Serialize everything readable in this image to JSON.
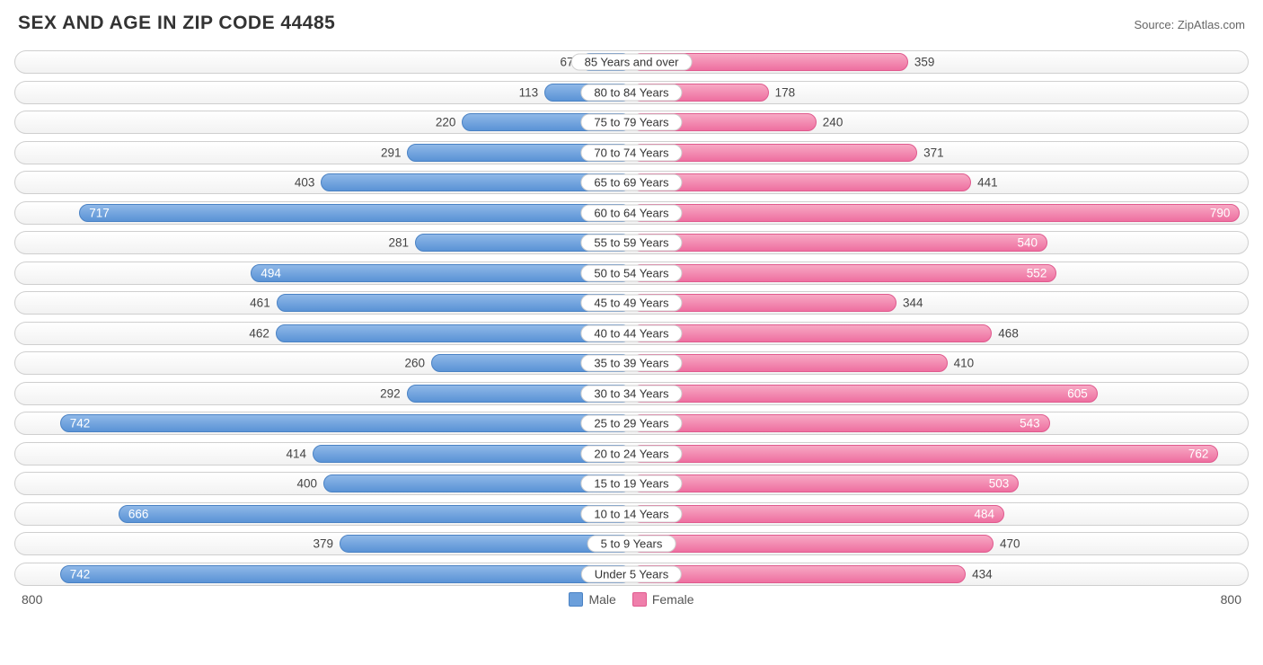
{
  "title": "SEX AND AGE IN ZIP CODE 44485",
  "source": "Source: ZipAtlas.com",
  "axis_max": 800,
  "axis_left_label": "800",
  "axis_right_label": "800",
  "legend": {
    "male": "Male",
    "female": "Female"
  },
  "colors": {
    "male_top": "#8fb8e8",
    "male_bottom": "#5a93d6",
    "male_border": "#4a82c4",
    "female_top": "#f7a9c4",
    "female_bottom": "#ee6fa0",
    "female_border": "#e05a8e",
    "row_border": "#cfcfcf",
    "text": "#444444",
    "title": "#333333",
    "bg": "#ffffff"
  },
  "inside_threshold": 480,
  "rows": [
    {
      "category": "85 Years and over",
      "male": 67,
      "female": 359
    },
    {
      "category": "80 to 84 Years",
      "male": 113,
      "female": 178
    },
    {
      "category": "75 to 79 Years",
      "male": 220,
      "female": 240
    },
    {
      "category": "70 to 74 Years",
      "male": 291,
      "female": 371
    },
    {
      "category": "65 to 69 Years",
      "male": 403,
      "female": 441
    },
    {
      "category": "60 to 64 Years",
      "male": 717,
      "female": 790
    },
    {
      "category": "55 to 59 Years",
      "male": 281,
      "female": 540
    },
    {
      "category": "50 to 54 Years",
      "male": 494,
      "female": 552
    },
    {
      "category": "45 to 49 Years",
      "male": 461,
      "female": 344
    },
    {
      "category": "40 to 44 Years",
      "male": 462,
      "female": 468
    },
    {
      "category": "35 to 39 Years",
      "male": 260,
      "female": 410
    },
    {
      "category": "30 to 34 Years",
      "male": 292,
      "female": 605
    },
    {
      "category": "25 to 29 Years",
      "male": 742,
      "female": 543
    },
    {
      "category": "20 to 24 Years",
      "male": 414,
      "female": 762
    },
    {
      "category": "15 to 19 Years",
      "male": 400,
      "female": 503
    },
    {
      "category": "10 to 14 Years",
      "male": 666,
      "female": 484
    },
    {
      "category": "5 to 9 Years",
      "male": 379,
      "female": 470
    },
    {
      "category": "Under 5 Years",
      "male": 742,
      "female": 434
    }
  ]
}
